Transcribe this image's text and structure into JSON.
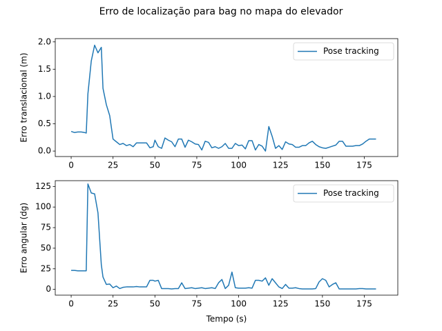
{
  "title": "Erro de localização para bag no mapa do elevador",
  "chart_data": [
    {
      "type": "line",
      "ylabel": "Erro translacional (m)",
      "x": [
        0,
        2,
        4,
        6,
        8,
        9,
        10,
        12,
        14,
        16,
        18,
        19,
        21,
        23,
        25,
        27,
        29,
        31,
        33,
        35,
        37,
        39,
        41,
        43,
        45,
        47,
        49,
        50,
        52,
        54,
        56,
        58,
        60,
        62,
        64,
        66,
        68,
        70,
        72,
        74,
        76,
        78,
        80,
        82,
        84,
        86,
        88,
        90,
        92,
        94,
        96,
        98,
        100,
        102,
        104,
        106,
        108,
        110,
        112,
        114,
        116,
        118,
        120,
        122,
        124,
        126,
        128,
        130,
        132,
        134,
        136,
        138,
        140,
        142,
        144,
        146,
        148,
        150,
        152,
        154,
        156,
        158,
        160,
        162,
        164,
        166,
        168,
        170,
        172,
        174,
        176,
        178,
        180,
        182
      ],
      "series": [
        {
          "name": "Pose tracking",
          "color": "#1f77b4",
          "values": [
            0.36,
            0.34,
            0.35,
            0.35,
            0.34,
            0.33,
            1.05,
            1.65,
            1.94,
            1.8,
            1.9,
            1.15,
            0.85,
            0.65,
            0.22,
            0.17,
            0.12,
            0.14,
            0.1,
            0.12,
            0.08,
            0.15,
            0.15,
            0.15,
            0.15,
            0.06,
            0.08,
            0.2,
            0.08,
            0.05,
            0.24,
            0.2,
            0.17,
            0.08,
            0.22,
            0.22,
            0.07,
            0.2,
            0.17,
            0.13,
            0.12,
            0.02,
            0.18,
            0.16,
            0.06,
            0.08,
            0.05,
            0.08,
            0.14,
            0.05,
            0.05,
            0.14,
            0.1,
            0.11,
            0.04,
            0.19,
            0.19,
            0.02,
            0.12,
            0.09,
            0.0,
            0.45,
            0.27,
            0.05,
            0.1,
            0.03,
            0.17,
            0.13,
            0.12,
            0.07,
            0.07,
            0.1,
            0.1,
            0.15,
            0.18,
            0.12,
            0.08,
            0.06,
            0.05,
            0.07,
            0.09,
            0.11,
            0.18,
            0.18,
            0.09,
            0.09,
            0.09,
            0.1,
            0.1,
            0.13,
            0.18,
            0.22,
            0.22,
            0.22
          ]
        }
      ],
      "xlim": [
        -9.5,
        195
      ],
      "ylim": [
        -0.1,
        2.06
      ],
      "xticks": [
        0,
        25,
        50,
        75,
        100,
        125,
        150,
        175
      ],
      "yticks": [
        {
          "value": 0,
          "label": "0.0"
        },
        0.5,
        {
          "value": 1,
          "label": "1.0"
        },
        1.5,
        {
          "value": 2,
          "label": "2.0"
        }
      ],
      "legend": "upper right"
    },
    {
      "type": "line",
      "xlabel": "Tempo (s)",
      "ylabel": "Erro angular (dg)",
      "x": [
        0,
        2,
        4,
        6,
        8,
        9,
        10,
        12,
        14,
        16,
        18,
        19,
        21,
        23,
        25,
        27,
        29,
        31,
        33,
        35,
        37,
        39,
        41,
        43,
        45,
        47,
        49,
        50,
        52,
        54,
        56,
        58,
        60,
        62,
        64,
        66,
        68,
        70,
        72,
        74,
        76,
        78,
        80,
        82,
        84,
        86,
        88,
        90,
        92,
        94,
        96,
        98,
        100,
        102,
        104,
        106,
        108,
        110,
        112,
        114,
        116,
        118,
        120,
        122,
        124,
        126,
        128,
        130,
        132,
        134,
        136,
        138,
        140,
        142,
        144,
        146,
        148,
        150,
        152,
        154,
        156,
        158,
        160,
        162,
        164,
        166,
        168,
        170,
        172,
        174,
        176,
        178,
        180,
        182
      ],
      "series": [
        {
          "name": "Pose tracking",
          "color": "#1f77b4",
          "values": [
            23,
            23,
            22.5,
            22.5,
            22.5,
            22.5,
            128,
            117,
            116,
            93,
            30,
            15,
            6,
            6.5,
            2,
            4,
            1,
            2.5,
            3,
            3,
            3,
            3.5,
            3,
            3,
            3,
            11,
            11,
            10,
            11,
            1,
            1,
            1,
            0.5,
            1,
            1,
            8,
            1,
            1.5,
            2,
            1,
            1.5,
            2,
            1,
            1.5,
            2,
            1,
            8,
            12,
            1,
            5,
            21,
            2,
            1.5,
            1.5,
            1.5,
            2,
            1.5,
            11,
            11,
            10,
            14,
            5,
            13,
            8,
            3,
            1,
            6,
            1.5,
            1.5,
            2,
            1,
            0.5,
            0.5,
            0.5,
            0.5,
            1,
            9,
            13,
            11,
            3,
            6,
            8,
            0.5,
            0.5,
            0.5,
            0.5,
            0.5,
            0.5,
            1,
            1,
            0.5,
            0.5,
            0.5,
            0.5
          ]
        }
      ],
      "xlim": [
        -9.5,
        195
      ],
      "ylim": [
        -7,
        132
      ],
      "xticks": [
        0,
        25,
        50,
        75,
        100,
        125,
        150,
        175
      ],
      "yticks": [
        0,
        25,
        50,
        75,
        100,
        125
      ],
      "legend": "upper right"
    }
  ]
}
